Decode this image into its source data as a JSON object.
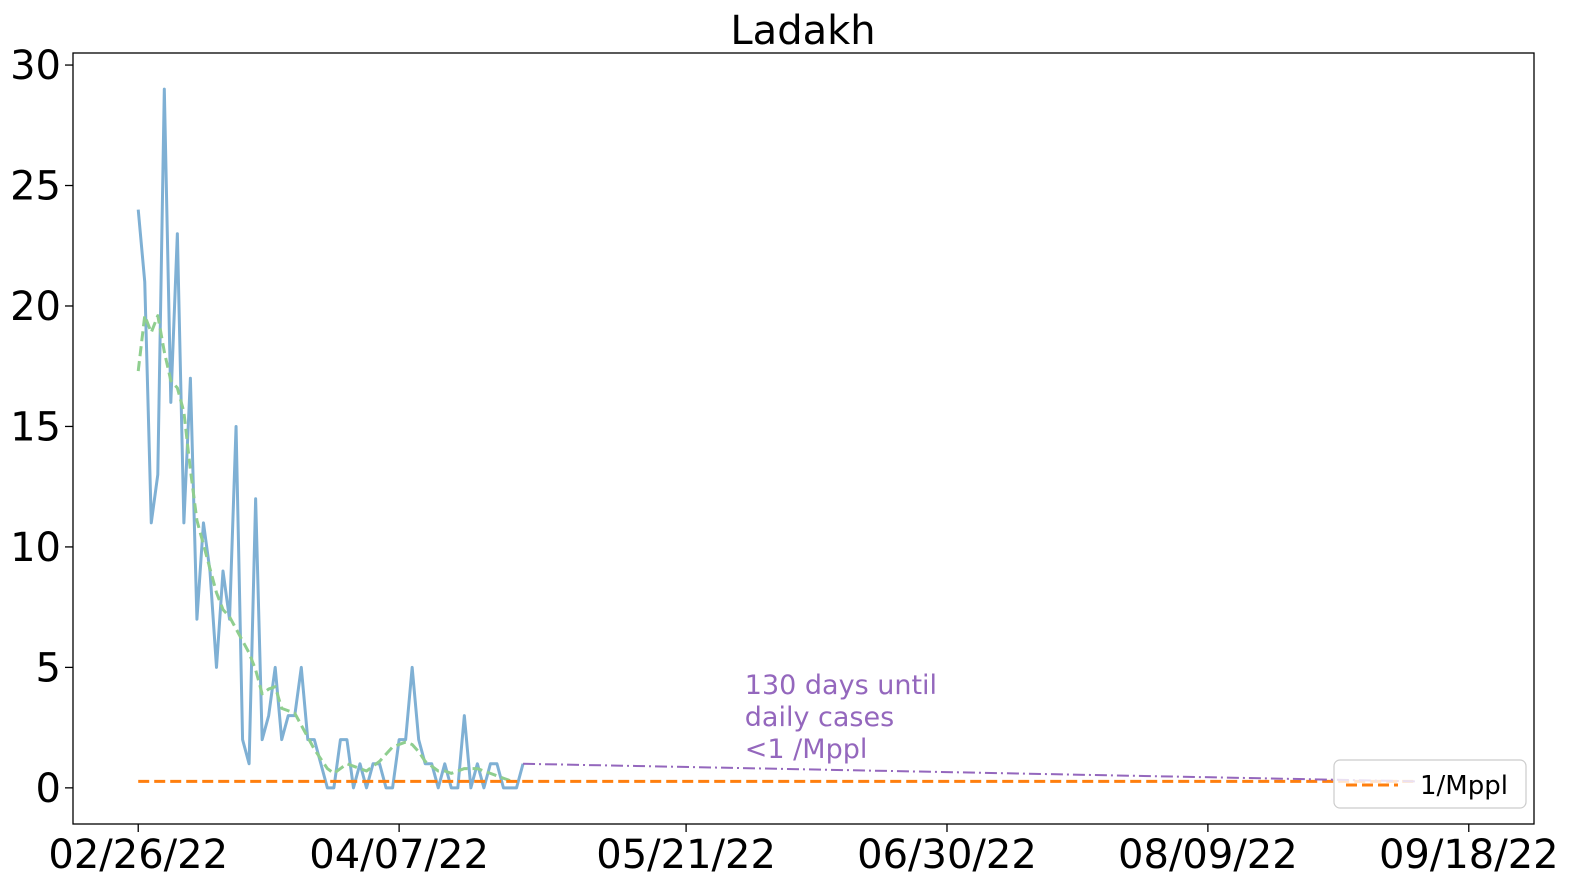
{
  "chart_data": {
    "type": "line",
    "title": "Ladakh",
    "xlabel": "",
    "ylabel": "",
    "x_ticks": [
      "02/26/22",
      "04/07/22",
      "05/21/22",
      "06/30/22",
      "08/09/22",
      "09/18/22"
    ],
    "y_ticks": [
      0,
      5,
      10,
      15,
      20,
      25,
      30
    ],
    "ylim": [
      -1.5,
      30.5
    ],
    "xlim": [
      "2022-02-16",
      "2022-09-28"
    ],
    "grid": false,
    "legend_position": "lower-right",
    "colors": {
      "daily": "#7fb0d4",
      "smoothed": "#8fce8f",
      "threshold": "#ff7f0e",
      "projection": "#9467bd"
    },
    "series": [
      {
        "key": "daily",
        "start_date": "2022-02-26",
        "values": [
          24,
          21,
          11,
          13,
          29,
          16,
          23,
          11,
          17,
          7,
          11,
          9,
          5,
          9,
          7,
          15,
          2,
          1,
          12,
          2,
          3,
          5,
          2,
          3,
          3,
          5,
          2,
          2,
          1,
          0,
          0,
          2,
          2,
          0,
          1,
          0,
          1,
          1,
          0,
          0,
          2,
          2,
          5,
          2,
          1,
          1,
          0,
          1,
          0,
          0,
          3,
          0,
          1,
          0,
          1,
          1,
          0,
          0,
          0,
          1
        ]
      },
      {
        "key": "smoothed",
        "start_date": "2022-02-26",
        "values": [
          17.3,
          19.6,
          18.9,
          19.6,
          18.1,
          16.9,
          16.6,
          15.6,
          13.2,
          11.1,
          10.1,
          9.1,
          8.1,
          7.4,
          7.1,
          6.6,
          6.1,
          5.6,
          4.9,
          3.9,
          4.1,
          4.2,
          3.3,
          3.2,
          3.1,
          2.6,
          2.1,
          1.6,
          1.2,
          0.8,
          0.6,
          0.8,
          1.0,
          0.9,
          0.8,
          0.7,
          0.9,
          1.1,
          1.4,
          1.7,
          1.8,
          1.9,
          1.8,
          1.5,
          1.1,
          0.9,
          0.7,
          0.7,
          0.6,
          0.7,
          0.8,
          0.8,
          0.8,
          0.7,
          0.6,
          0.5,
          0.4,
          0.3
        ]
      },
      {
        "key": "threshold",
        "name": "1/Mppl",
        "value": 0.27,
        "start": "2022-02-26",
        "end": "2022-09-10"
      },
      {
        "key": "projection",
        "points": [
          [
            "2022-04-26",
            1.0
          ],
          [
            "2022-09-10",
            0.27
          ]
        ]
      }
    ],
    "annotation": {
      "lines": [
        "130 days until",
        "daily cases",
        "<1 /Mppl"
      ],
      "anchor": [
        "2022-05-30",
        3.9
      ]
    }
  }
}
